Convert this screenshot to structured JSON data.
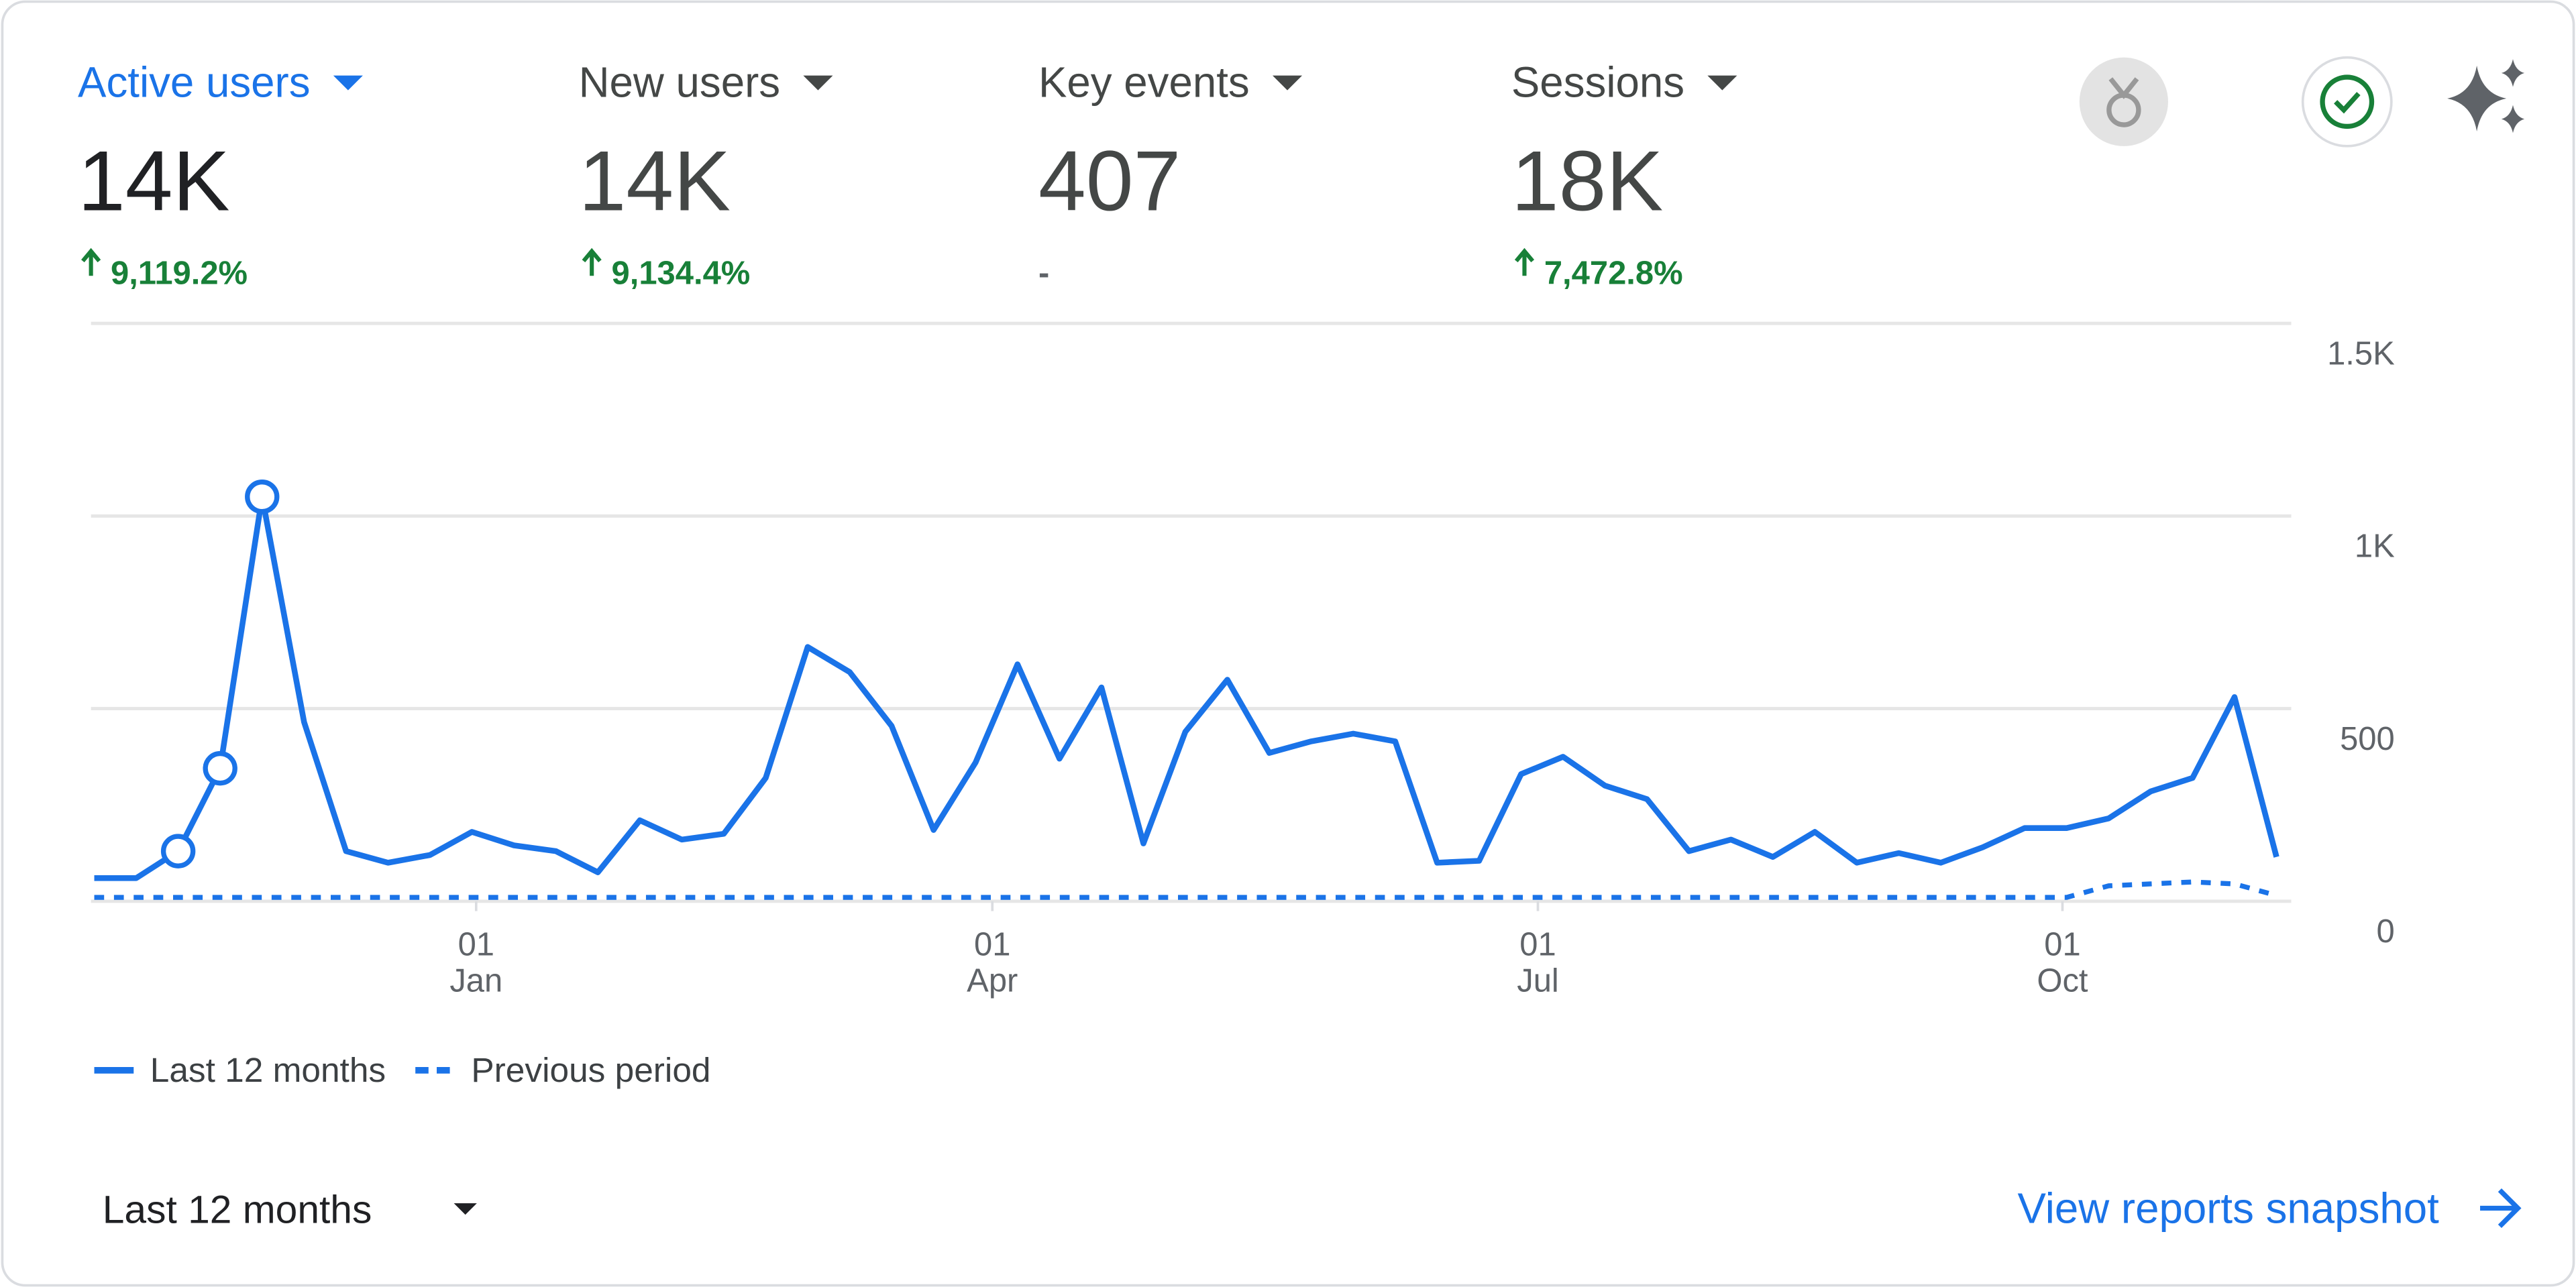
{
  "metrics": [
    {
      "label": "Active users",
      "value": "14K",
      "change": "9,119.2%",
      "active": true
    },
    {
      "label": "New users",
      "value": "14K",
      "change": "9,134.4%",
      "active": false
    },
    {
      "label": "Key events",
      "value": "407",
      "change": "-",
      "active": false
    },
    {
      "label": "Sessions",
      "value": "18K",
      "change": "7,472.8%",
      "active": false
    }
  ],
  "chart_data": {
    "type": "line",
    "x": [
      0,
      1,
      2,
      3,
      4,
      5,
      6,
      7,
      8,
      9,
      10,
      11,
      12,
      13,
      14,
      15,
      16,
      17,
      18,
      19,
      20,
      21,
      22,
      23,
      24,
      25,
      26,
      27,
      28,
      29,
      30,
      31,
      32,
      33,
      34,
      35,
      36,
      37,
      38,
      39,
      40,
      41,
      42,
      43,
      44,
      45,
      46,
      47,
      48,
      49,
      50,
      51,
      52
    ],
    "series": [
      {
        "name": "Last 12 months",
        "color": "#1a73e8",
        "dash": false,
        "values": [
          60,
          60,
          130,
          345,
          1050,
          465,
          130,
          100,
          120,
          180,
          145,
          130,
          75,
          210,
          160,
          175,
          320,
          660,
          595,
          455,
          185,
          360,
          615,
          370,
          555,
          150,
          440,
          575,
          385,
          415,
          435,
          415,
          100,
          105,
          330,
          375,
          300,
          265,
          130,
          160,
          115,
          180,
          100,
          125,
          100,
          140,
          190,
          190,
          215,
          285,
          320,
          530,
          115
        ]
      },
      {
        "name": "Previous period",
        "color": "#1a73e8",
        "dash": true,
        "values": [
          10,
          10,
          10,
          10,
          10,
          10,
          10,
          10,
          10,
          10,
          10,
          10,
          10,
          10,
          10,
          10,
          10,
          10,
          10,
          10,
          10,
          10,
          10,
          10,
          10,
          10,
          10,
          10,
          10,
          10,
          10,
          10,
          10,
          10,
          10,
          10,
          10,
          10,
          10,
          10,
          10,
          10,
          10,
          10,
          10,
          10,
          10,
          10,
          40,
          45,
          50,
          45,
          15
        ]
      }
    ],
    "xlim": [
      0,
      52
    ],
    "xticks": [
      {
        "value": 9.1,
        "label": "01",
        "sublabel": "Jan"
      },
      {
        "value": 21.4,
        "label": "01",
        "sublabel": "Apr"
      },
      {
        "value": 34.4,
        "label": "01",
        "sublabel": "Jul"
      },
      {
        "value": 46.9,
        "label": "01",
        "sublabel": "Oct"
      }
    ],
    "ylim": [
      0,
      1500
    ],
    "yticks": [
      0,
      500,
      {
        "value": 1000,
        "label": "1K"
      },
      {
        "value": 1500,
        "label": "1.5K"
      }
    ],
    "grid": true
  },
  "footer": {
    "range": "Last 12 months",
    "link": "View reports snapshot"
  }
}
